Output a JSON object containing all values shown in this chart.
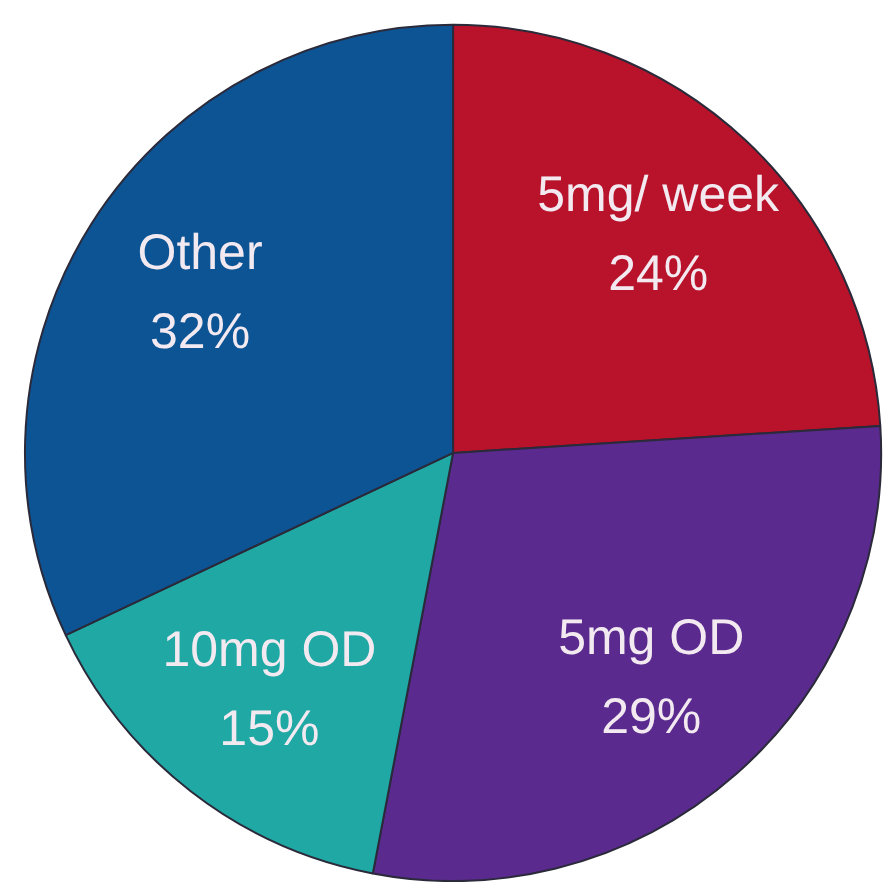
{
  "chart_data": {
    "type": "pie",
    "categories": [
      "5mg/ week",
      "5mg OD",
      "10mg OD",
      "Other"
    ],
    "values": [
      24,
      29,
      15,
      32
    ],
    "value_labels": [
      "24%",
      "29%",
      "15%",
      "32%"
    ],
    "colors": [
      "#b8132a",
      "#5a2a8e",
      "#1fa8a4",
      "#0d5495"
    ]
  }
}
